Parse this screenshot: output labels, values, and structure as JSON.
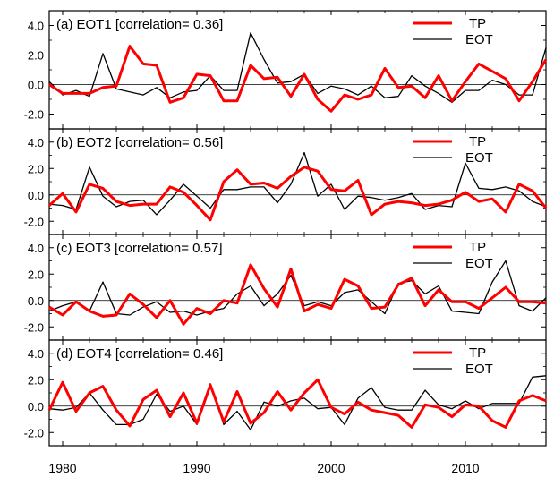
{
  "chart_data": [
    {
      "type": "line",
      "title": "(a) EOT1 [correlation= 0.36]",
      "xlim": [
        1979,
        2016
      ],
      "ylim": [
        -3,
        5
      ],
      "yticks": [
        "-2.0",
        "0.0",
        "2.0",
        "4.0"
      ],
      "legend_position": "top-right",
      "x": [
        1979,
        1980,
        1981,
        1982,
        1983,
        1984,
        1985,
        1986,
        1987,
        1988,
        1989,
        1990,
        1991,
        1992,
        1993,
        1994,
        1995,
        1996,
        1997,
        1998,
        1999,
        2000,
        2001,
        2002,
        2003,
        2004,
        2005,
        2006,
        2007,
        2008,
        2009,
        2010,
        2011,
        2012,
        2013,
        2014,
        2015,
        2016
      ],
      "series": [
        {
          "name": "TP",
          "color": "#ff0000",
          "width": 3,
          "values": [
            0.0,
            -0.6,
            -0.6,
            -0.6,
            -0.2,
            -0.1,
            2.6,
            1.4,
            1.3,
            -1.2,
            -0.9,
            0.7,
            0.6,
            -1.1,
            -1.1,
            1.3,
            0.4,
            0.5,
            -0.8,
            0.7,
            -1.0,
            -1.8,
            -0.7,
            -1.0,
            -0.7,
            1.1,
            -0.2,
            -0.1,
            -0.9,
            0.6,
            -1.1,
            0.2,
            1.4,
            0.9,
            0.4,
            -1.1,
            0.2,
            1.7
          ]
        },
        {
          "name": "EOT",
          "color": "#000000",
          "width": 1.3,
          "values": [
            0.2,
            -0.7,
            -0.4,
            -0.8,
            2.1,
            -0.3,
            -0.5,
            -0.7,
            -0.2,
            -0.9,
            -0.5,
            -0.4,
            0.6,
            -0.4,
            -0.4,
            3.5,
            1.7,
            0.1,
            0.2,
            0.7,
            -0.6,
            -0.1,
            -0.3,
            -0.7,
            -0.1,
            -0.9,
            -0.8,
            0.6,
            -0.1,
            -0.6,
            -1.2,
            -0.4,
            -0.4,
            0.3,
            0.0,
            -0.7,
            -0.7,
            2.5
          ]
        }
      ]
    },
    {
      "type": "line",
      "title": "(b) EOT2 [correlation= 0.56]",
      "xlim": [
        1979,
        2016
      ],
      "ylim": [
        -3,
        5
      ],
      "yticks": [
        "-2.0",
        "0.0",
        "2.0",
        "4.0"
      ],
      "legend_position": "top-right",
      "x": [
        1979,
        1980,
        1981,
        1982,
        1983,
        1984,
        1985,
        1986,
        1987,
        1988,
        1989,
        1990,
        1991,
        1992,
        1993,
        1994,
        1995,
        1996,
        1997,
        1998,
        1999,
        2000,
        2001,
        2002,
        2003,
        2004,
        2005,
        2006,
        2007,
        2008,
        2009,
        2010,
        2011,
        2012,
        2013,
        2014,
        2015,
        2016
      ],
      "series": [
        {
          "name": "TP",
          "color": "#ff0000",
          "width": 3,
          "values": [
            -0.8,
            0.1,
            -1.3,
            0.8,
            0.5,
            -0.5,
            -0.8,
            -0.7,
            -0.7,
            0.6,
            0.2,
            -0.8,
            -1.9,
            1.0,
            1.9,
            0.8,
            0.9,
            0.5,
            1.4,
            2.1,
            1.8,
            0.4,
            0.3,
            1.1,
            -1.5,
            -0.7,
            -0.5,
            -0.6,
            -0.8,
            -0.7,
            -0.4,
            0.2,
            -0.5,
            -0.3,
            -1.3,
            0.8,
            0.3,
            -1.0
          ]
        },
        {
          "name": "EOT",
          "color": "#000000",
          "width": 1.3,
          "values": [
            -0.7,
            -0.8,
            -1.1,
            2.1,
            -0.1,
            -0.9,
            -0.5,
            -0.4,
            -1.5,
            -0.4,
            0.8,
            -0.1,
            -1.0,
            0.4,
            0.4,
            0.6,
            0.6,
            -0.6,
            0.8,
            3.2,
            -0.1,
            0.8,
            -1.1,
            -0.1,
            -0.2,
            -0.4,
            -0.2,
            0.1,
            -1.1,
            -0.8,
            -0.9,
            2.4,
            0.5,
            0.4,
            0.6,
            0.3,
            -0.5,
            -0.9
          ]
        }
      ]
    },
    {
      "type": "line",
      "title": "(c) EOT3 [correlation= 0.57]",
      "xlim": [
        1979,
        2016
      ],
      "ylim": [
        -3,
        5
      ],
      "yticks": [
        "-2.0",
        "0.0",
        "2.0",
        "4.0"
      ],
      "legend_position": "top-right",
      "x": [
        1979,
        1980,
        1981,
        1982,
        1983,
        1984,
        1985,
        1986,
        1987,
        1988,
        1989,
        1990,
        1991,
        1992,
        1993,
        1994,
        1995,
        1996,
        1997,
        1998,
        1999,
        2000,
        2001,
        2002,
        2003,
        2004,
        2005,
        2006,
        2007,
        2008,
        2009,
        2010,
        2011,
        2012,
        2013,
        2014,
        2015,
        2016
      ],
      "series": [
        {
          "name": "TP",
          "color": "#ff0000",
          "width": 3,
          "values": [
            -0.5,
            -1.1,
            -0.1,
            -0.8,
            -1.2,
            -1.1,
            0.5,
            -0.3,
            -1.3,
            0.0,
            -1.8,
            -0.6,
            -1.0,
            0.0,
            -0.2,
            2.7,
            0.9,
            -0.5,
            2.4,
            -0.8,
            -0.3,
            -0.6,
            1.6,
            1.1,
            -0.6,
            -0.5,
            1.2,
            1.7,
            -0.4,
            0.8,
            -0.1,
            -0.1,
            -0.6,
            0.2,
            1.0,
            -0.1,
            -0.1,
            -0.2
          ]
        },
        {
          "name": "EOT",
          "color": "#000000",
          "width": 1.3,
          "values": [
            -0.8,
            -0.4,
            -0.1,
            -0.8,
            1.4,
            -1.0,
            -1.1,
            -0.5,
            -0.1,
            -0.9,
            -0.8,
            -1.1,
            -0.8,
            -0.6,
            0.5,
            1.1,
            -0.4,
            0.5,
            1.9,
            -0.4,
            -0.1,
            -0.4,
            0.6,
            0.8,
            -0.1,
            -1.0,
            1.3,
            1.5,
            0.5,
            1.1,
            -0.8,
            -0.9,
            -1.0,
            1.4,
            3.0,
            -0.4,
            -0.8,
            0.2
          ]
        }
      ]
    },
    {
      "type": "line",
      "title": "(d) EOT4 [correlation= 0.46]",
      "xlim": [
        1979,
        2016
      ],
      "ylim": [
        -3,
        5
      ],
      "yticks": [
        "-2.0",
        "0.0",
        "2.0",
        "4.0"
      ],
      "legend_position": "top-right",
      "x": [
        1979,
        1980,
        1981,
        1982,
        1983,
        1984,
        1985,
        1986,
        1987,
        1988,
        1989,
        1990,
        1991,
        1992,
        1993,
        1994,
        1995,
        1996,
        1997,
        1998,
        1999,
        2000,
        2001,
        2002,
        2003,
        2004,
        2005,
        2006,
        2007,
        2008,
        2009,
        2010,
        2011,
        2012,
        2013,
        2014,
        2015,
        2016
      ],
      "series": [
        {
          "name": "TP",
          "color": "#ff0000",
          "width": 3,
          "values": [
            -0.3,
            1.8,
            -0.4,
            1.0,
            1.5,
            -0.3,
            -1.5,
            0.5,
            1.2,
            -0.8,
            1.0,
            -1.3,
            1.6,
            -1.2,
            1.1,
            -1.3,
            -0.5,
            1.1,
            -0.3,
            1.0,
            2.0,
            -0.1,
            -0.6,
            0.3,
            -0.3,
            -0.5,
            -0.7,
            -1.6,
            0.1,
            -0.1,
            -0.8,
            0.1,
            0.0,
            -1.1,
            -1.6,
            0.4,
            0.8,
            0.4
          ]
        },
        {
          "name": "EOT",
          "color": "#000000",
          "width": 1.3,
          "values": [
            -0.2,
            -0.3,
            -0.1,
            1.0,
            -0.3,
            -1.4,
            -1.4,
            -1.0,
            0.9,
            -0.4,
            0.0,
            -1.4,
            1.7,
            -1.4,
            -0.4,
            -1.8,
            0.3,
            0.0,
            0.4,
            0.6,
            -0.2,
            -0.1,
            -1.4,
            0.6,
            1.4,
            -0.1,
            -0.3,
            -0.3,
            1.2,
            0.1,
            -0.2,
            0.4,
            -0.2,
            0.2,
            0.2,
            0.2,
            2.2,
            2.3
          ]
        }
      ]
    }
  ],
  "x_axis": {
    "ticks": [
      1980,
      1990,
      2000,
      2010
    ],
    "tick_labels": [
      "1980",
      "1990",
      "2000",
      "2010"
    ]
  },
  "legend": {
    "tp_label": "TP",
    "eot_label": "EOT"
  }
}
